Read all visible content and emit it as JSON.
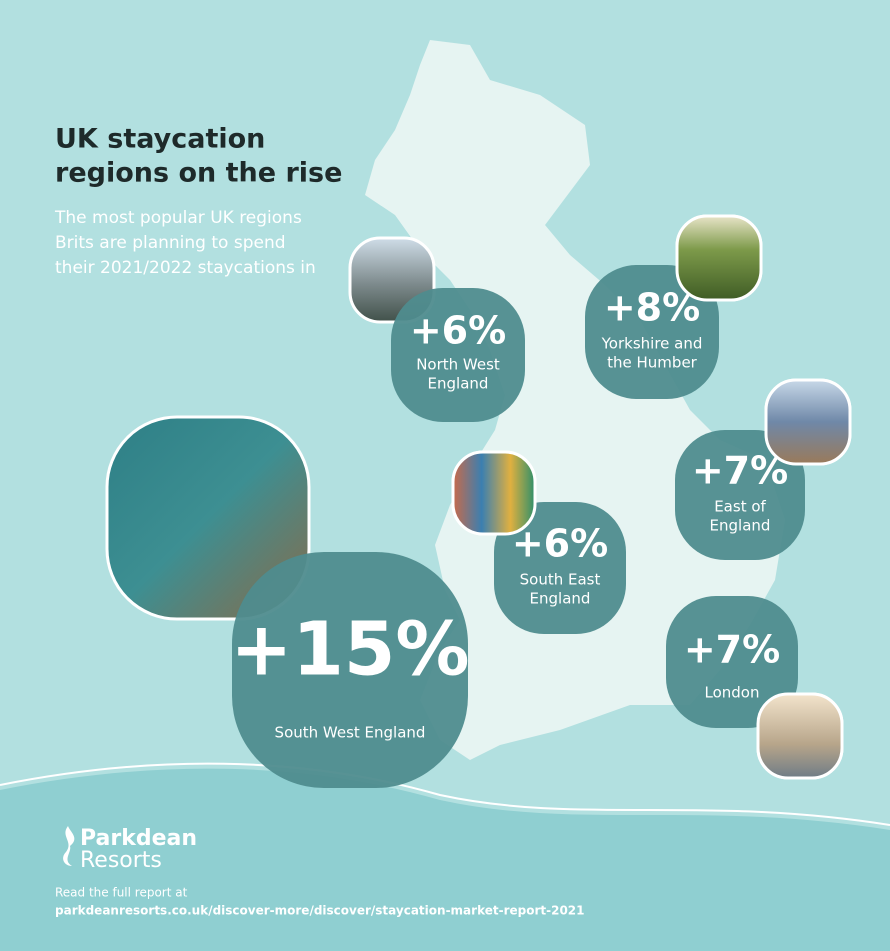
{
  "header": {
    "title_lines": [
      "UK staycation",
      "regions on the rise"
    ],
    "subtitle_lines": [
      "The most popular UK regions",
      "Brits are planning to spend",
      "their 2021/2022 staycations in"
    ]
  },
  "regions": [
    {
      "change": "+6%",
      "name_lines": [
        "North West",
        "England"
      ]
    },
    {
      "change": "+8%",
      "name_lines": [
        "Yorkshire and",
        "the Humber"
      ]
    },
    {
      "change": "+7%",
      "name_lines": [
        "East of",
        "England"
      ]
    },
    {
      "change": "+6%",
      "name_lines": [
        "South East",
        "England"
      ]
    },
    {
      "change": "+7%",
      "name_lines": [
        "London"
      ]
    },
    {
      "change": "+15%",
      "name_lines": [
        "South West England"
      ]
    }
  ],
  "footer": {
    "logo_lines": [
      "Parkdean",
      "Resorts"
    ],
    "note": "Read the full report at",
    "url": "parkdeanresorts.co.uk/discover-more/discover/staycation-market-report-2021"
  }
}
